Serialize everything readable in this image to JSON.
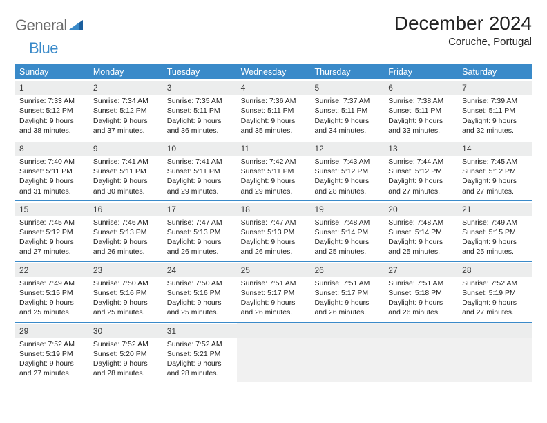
{
  "brand": {
    "part1": "General",
    "part2": "Blue"
  },
  "title": "December 2024",
  "location": "Coruche, Portugal",
  "colors": {
    "brand_gray": "#6b6b6b",
    "brand_blue": "#3a8ac9",
    "header_bg": "#3a8ac9",
    "daynum_bg": "#eceded",
    "rule": "#3a8ac9",
    "text": "#222222",
    "empty_bg": "#f1f1f1"
  },
  "typography": {
    "title_fontsize": 28,
    "subtitle_fontsize": 15,
    "weekday_fontsize": 12.5,
    "daynum_fontsize": 12,
    "body_fontsize": 10.5
  },
  "weekdays": [
    "Sunday",
    "Monday",
    "Tuesday",
    "Wednesday",
    "Thursday",
    "Friday",
    "Saturday"
  ],
  "weeks": [
    [
      {
        "day": "1",
        "sunrise": "7:33 AM",
        "sunset": "5:12 PM",
        "daylight": "9 hours and 38 minutes."
      },
      {
        "day": "2",
        "sunrise": "7:34 AM",
        "sunset": "5:12 PM",
        "daylight": "9 hours and 37 minutes."
      },
      {
        "day": "3",
        "sunrise": "7:35 AM",
        "sunset": "5:11 PM",
        "daylight": "9 hours and 36 minutes."
      },
      {
        "day": "4",
        "sunrise": "7:36 AM",
        "sunset": "5:11 PM",
        "daylight": "9 hours and 35 minutes."
      },
      {
        "day": "5",
        "sunrise": "7:37 AM",
        "sunset": "5:11 PM",
        "daylight": "9 hours and 34 minutes."
      },
      {
        "day": "6",
        "sunrise": "7:38 AM",
        "sunset": "5:11 PM",
        "daylight": "9 hours and 33 minutes."
      },
      {
        "day": "7",
        "sunrise": "7:39 AM",
        "sunset": "5:11 PM",
        "daylight": "9 hours and 32 minutes."
      }
    ],
    [
      {
        "day": "8",
        "sunrise": "7:40 AM",
        "sunset": "5:11 PM",
        "daylight": "9 hours and 31 minutes."
      },
      {
        "day": "9",
        "sunrise": "7:41 AM",
        "sunset": "5:11 PM",
        "daylight": "9 hours and 30 minutes."
      },
      {
        "day": "10",
        "sunrise": "7:41 AM",
        "sunset": "5:11 PM",
        "daylight": "9 hours and 29 minutes."
      },
      {
        "day": "11",
        "sunrise": "7:42 AM",
        "sunset": "5:11 PM",
        "daylight": "9 hours and 29 minutes."
      },
      {
        "day": "12",
        "sunrise": "7:43 AM",
        "sunset": "5:12 PM",
        "daylight": "9 hours and 28 minutes."
      },
      {
        "day": "13",
        "sunrise": "7:44 AM",
        "sunset": "5:12 PM",
        "daylight": "9 hours and 27 minutes."
      },
      {
        "day": "14",
        "sunrise": "7:45 AM",
        "sunset": "5:12 PM",
        "daylight": "9 hours and 27 minutes."
      }
    ],
    [
      {
        "day": "15",
        "sunrise": "7:45 AM",
        "sunset": "5:12 PM",
        "daylight": "9 hours and 27 minutes."
      },
      {
        "day": "16",
        "sunrise": "7:46 AM",
        "sunset": "5:13 PM",
        "daylight": "9 hours and 26 minutes."
      },
      {
        "day": "17",
        "sunrise": "7:47 AM",
        "sunset": "5:13 PM",
        "daylight": "9 hours and 26 minutes."
      },
      {
        "day": "18",
        "sunrise": "7:47 AM",
        "sunset": "5:13 PM",
        "daylight": "9 hours and 26 minutes."
      },
      {
        "day": "19",
        "sunrise": "7:48 AM",
        "sunset": "5:14 PM",
        "daylight": "9 hours and 25 minutes."
      },
      {
        "day": "20",
        "sunrise": "7:48 AM",
        "sunset": "5:14 PM",
        "daylight": "9 hours and 25 minutes."
      },
      {
        "day": "21",
        "sunrise": "7:49 AM",
        "sunset": "5:15 PM",
        "daylight": "9 hours and 25 minutes."
      }
    ],
    [
      {
        "day": "22",
        "sunrise": "7:49 AM",
        "sunset": "5:15 PM",
        "daylight": "9 hours and 25 minutes."
      },
      {
        "day": "23",
        "sunrise": "7:50 AM",
        "sunset": "5:16 PM",
        "daylight": "9 hours and 25 minutes."
      },
      {
        "day": "24",
        "sunrise": "7:50 AM",
        "sunset": "5:16 PM",
        "daylight": "9 hours and 25 minutes."
      },
      {
        "day": "25",
        "sunrise": "7:51 AM",
        "sunset": "5:17 PM",
        "daylight": "9 hours and 26 minutes."
      },
      {
        "day": "26",
        "sunrise": "7:51 AM",
        "sunset": "5:17 PM",
        "daylight": "9 hours and 26 minutes."
      },
      {
        "day": "27",
        "sunrise": "7:51 AM",
        "sunset": "5:18 PM",
        "daylight": "9 hours and 26 minutes."
      },
      {
        "day": "28",
        "sunrise": "7:52 AM",
        "sunset": "5:19 PM",
        "daylight": "9 hours and 27 minutes."
      }
    ],
    [
      {
        "day": "29",
        "sunrise": "7:52 AM",
        "sunset": "5:19 PM",
        "daylight": "9 hours and 27 minutes."
      },
      {
        "day": "30",
        "sunrise": "7:52 AM",
        "sunset": "5:20 PM",
        "daylight": "9 hours and 28 minutes."
      },
      {
        "day": "31",
        "sunrise": "7:52 AM",
        "sunset": "5:21 PM",
        "daylight": "9 hours and 28 minutes."
      },
      null,
      null,
      null,
      null
    ]
  ],
  "labels": {
    "sunrise": "Sunrise: ",
    "sunset": "Sunset: ",
    "daylight": "Daylight: "
  }
}
